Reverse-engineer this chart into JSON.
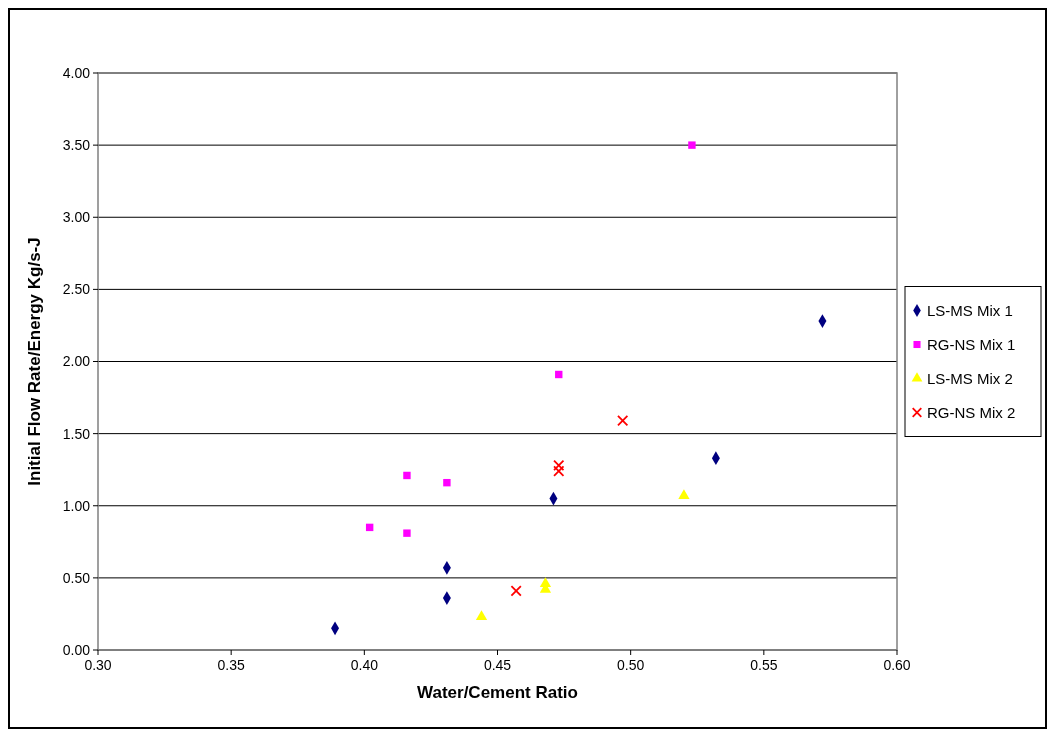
{
  "chart_data": {
    "type": "scatter",
    "xlabel": "Water/Cement Ratio",
    "ylabel": "Initial Flow Rate/Energy Kg/s-J",
    "xlim": [
      0.3,
      0.6
    ],
    "ylim": [
      0,
      4
    ],
    "xticks": [
      {
        "value": 0.3,
        "label": "0.30"
      },
      {
        "value": 0.35,
        "label": "0.35"
      },
      {
        "value": 0.4,
        "label": "0.40"
      },
      {
        "value": 0.45,
        "label": "0.45"
      },
      {
        "value": 0.5,
        "label": "0.50"
      },
      {
        "value": 0.55,
        "label": "0.55"
      },
      {
        "value": 0.6,
        "label": "0.60"
      }
    ],
    "yticks": [
      {
        "value": 0,
        "label": "0.00"
      },
      {
        "value": 0.5,
        "label": "0.50"
      },
      {
        "value": 1,
        "label": "1.00"
      },
      {
        "value": 1.5,
        "label": "1.50"
      },
      {
        "value": 2,
        "label": "2.00"
      },
      {
        "value": 2.5,
        "label": "2.50"
      },
      {
        "value": 3,
        "label": "3.00"
      },
      {
        "value": 3.5,
        "label": "3.50"
      },
      {
        "value": 4,
        "label": "4.00"
      }
    ],
    "grid": "y",
    "legend": "right",
    "series": [
      {
        "name": "LS-MS Mix 1",
        "color": "#000080",
        "marker": "diamond",
        "x": [
          0.389,
          0.431,
          0.431,
          0.471,
          0.532,
          0.572
        ],
        "values": [
          0.15,
          0.36,
          0.57,
          1.05,
          1.33,
          2.28
        ]
      },
      {
        "name": "RG-NS Mix 1",
        "color": "#ff00ff",
        "marker": "square",
        "x": [
          0.402,
          0.416,
          0.416,
          0.431,
          0.473,
          0.523
        ],
        "values": [
          0.85,
          1.21,
          0.81,
          1.16,
          1.91,
          3.5
        ]
      },
      {
        "name": "LS-MS Mix 2",
        "color": "#ffff00",
        "marker": "triangle",
        "x": [
          0.444,
          0.468,
          0.468,
          0.52
        ],
        "values": [
          0.23,
          0.46,
          0.42,
          1.07
        ]
      },
      {
        "name": "RG-NS Mix 2",
        "color": "#ff0000",
        "marker": "cross",
        "x": [
          0.457,
          0.473,
          0.473,
          0.497
        ],
        "values": [
          0.41,
          1.28,
          1.24,
          1.59
        ]
      }
    ]
  }
}
